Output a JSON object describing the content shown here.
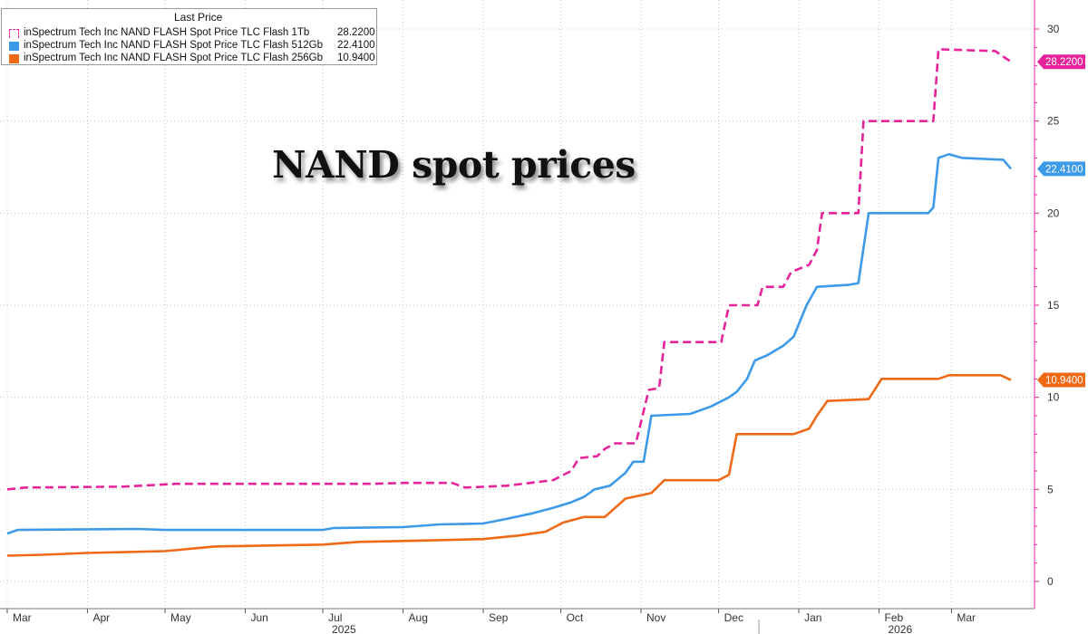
{
  "chart_data": {
    "type": "line",
    "title": "NAND spot prices",
    "legend_header": "Last Price",
    "legend_position": "top-left",
    "grid": true,
    "ylim": [
      0,
      30
    ],
    "yticks": [
      "0",
      "5",
      "10",
      "15",
      "20",
      "25",
      "30"
    ],
    "x_start": "2025-03-01",
    "x_end": "2026-03-31",
    "xticks": [
      {
        "label": "Mar",
        "date": "2025-03-01"
      },
      {
        "label": "Apr",
        "date": "2025-04-01"
      },
      {
        "label": "May",
        "date": "2025-05-01"
      },
      {
        "label": "Jun",
        "date": "2025-06-01"
      },
      {
        "label": "Jul",
        "date": "2025-07-01"
      },
      {
        "label": "Aug",
        "date": "2025-08-01"
      },
      {
        "label": "Sep",
        "date": "2025-09-01"
      },
      {
        "label": "Oct",
        "date": "2025-10-01"
      },
      {
        "label": "Nov",
        "date": "2025-11-01"
      },
      {
        "label": "Dec",
        "date": "2025-12-01"
      },
      {
        "label": "Jan",
        "date": "2026-01-01"
      },
      {
        "label": "Feb",
        "date": "2026-02-01"
      },
      {
        "label": "Mar",
        "date": "2026-03-01"
      }
    ],
    "year_labels": [
      {
        "label": "2025",
        "date": "2025-07-15"
      },
      {
        "label": "2026",
        "date": "2026-02-15"
      }
    ],
    "series": [
      {
        "name": "inSpectrum Tech Inc NAND FLASH Spot Price TLC Flash 1Tb",
        "last_value": "28.2200",
        "color": "#e6239a",
        "style": "dashed",
        "points": [
          [
            "2025-03-01",
            5.0
          ],
          [
            "2025-03-08",
            5.1
          ],
          [
            "2025-04-15",
            5.15
          ],
          [
            "2025-05-05",
            5.3
          ],
          [
            "2025-07-01",
            5.3
          ],
          [
            "2025-07-20",
            5.3
          ],
          [
            "2025-08-01",
            5.35
          ],
          [
            "2025-08-20",
            5.35
          ],
          [
            "2025-08-25",
            5.1
          ],
          [
            "2025-09-10",
            5.2
          ],
          [
            "2025-09-22",
            5.4
          ],
          [
            "2025-09-28",
            5.5
          ],
          [
            "2025-10-05",
            6.0
          ],
          [
            "2025-10-08",
            6.7
          ],
          [
            "2025-10-15",
            6.8
          ],
          [
            "2025-10-18",
            7.2
          ],
          [
            "2025-10-22",
            7.5
          ],
          [
            "2025-10-30",
            7.5
          ],
          [
            "2025-11-04",
            10.4
          ],
          [
            "2025-11-08",
            10.5
          ],
          [
            "2025-11-10",
            13.0
          ],
          [
            "2025-11-24",
            13.0
          ],
          [
            "2025-12-02",
            13.0
          ],
          [
            "2025-12-05",
            15.0
          ],
          [
            "2025-12-16",
            15.0
          ],
          [
            "2025-12-18",
            16.0
          ],
          [
            "2025-12-26",
            16.0
          ],
          [
            "2025-12-29",
            16.8
          ],
          [
            "2026-01-05",
            17.2
          ],
          [
            "2026-01-08",
            18.0
          ],
          [
            "2026-01-10",
            20.0
          ],
          [
            "2026-01-24",
            20.0
          ],
          [
            "2026-01-26",
            25.0
          ],
          [
            "2026-02-22",
            25.0
          ],
          [
            "2026-02-24",
            28.9
          ],
          [
            "2026-03-18",
            28.8
          ],
          [
            "2026-03-21",
            28.5
          ],
          [
            "2026-03-24",
            28.22
          ]
        ]
      },
      {
        "name": "inSpectrum Tech Inc NAND FLASH Spot Price TLC Flash 512Gb",
        "last_value": "22.4100",
        "color": "#3d9ae8",
        "style": "solid",
        "points": [
          [
            "2025-03-01",
            2.6
          ],
          [
            "2025-03-05",
            2.8
          ],
          [
            "2025-04-20",
            2.85
          ],
          [
            "2025-05-01",
            2.8
          ],
          [
            "2025-07-01",
            2.8
          ],
          [
            "2025-07-05",
            2.9
          ],
          [
            "2025-08-01",
            2.95
          ],
          [
            "2025-08-15",
            3.1
          ],
          [
            "2025-09-01",
            3.15
          ],
          [
            "2025-09-10",
            3.4
          ],
          [
            "2025-09-20",
            3.7
          ],
          [
            "2025-09-28",
            4.0
          ],
          [
            "2025-10-05",
            4.3
          ],
          [
            "2025-10-10",
            4.6
          ],
          [
            "2025-10-14",
            5.0
          ],
          [
            "2025-10-20",
            5.2
          ],
          [
            "2025-10-26",
            5.9
          ],
          [
            "2025-10-29",
            6.5
          ],
          [
            "2025-11-02",
            6.5
          ],
          [
            "2025-11-05",
            9.0
          ],
          [
            "2025-11-20",
            9.1
          ],
          [
            "2025-11-28",
            9.5
          ],
          [
            "2025-12-05",
            10.0
          ],
          [
            "2025-12-08",
            10.3
          ],
          [
            "2025-12-12",
            11.0
          ],
          [
            "2025-12-15",
            12.0
          ],
          [
            "2025-12-20",
            12.3
          ],
          [
            "2025-12-26",
            12.8
          ],
          [
            "2025-12-30",
            13.3
          ],
          [
            "2026-01-04",
            15.0
          ],
          [
            "2026-01-08",
            16.0
          ],
          [
            "2026-01-20",
            16.1
          ],
          [
            "2026-01-24",
            16.2
          ],
          [
            "2026-01-28",
            20.0
          ],
          [
            "2026-02-20",
            20.0
          ],
          [
            "2026-02-22",
            20.3
          ],
          [
            "2026-02-24",
            23.0
          ],
          [
            "2026-02-28",
            23.2
          ],
          [
            "2026-03-05",
            23.0
          ],
          [
            "2026-03-21",
            22.9
          ],
          [
            "2026-03-24",
            22.41
          ]
        ]
      },
      {
        "name": "inSpectrum Tech Inc NAND FLASH Spot Price TLC Flash 256Gb",
        "last_value": "10.9400",
        "color": "#ef6a16",
        "style": "solid",
        "points": [
          [
            "2025-03-01",
            1.4
          ],
          [
            "2025-03-15",
            1.45
          ],
          [
            "2025-04-01",
            1.55
          ],
          [
            "2025-05-01",
            1.65
          ],
          [
            "2025-05-20",
            1.9
          ],
          [
            "2025-07-01",
            2.0
          ],
          [
            "2025-07-15",
            2.15
          ],
          [
            "2025-08-01",
            2.2
          ],
          [
            "2025-09-01",
            2.3
          ],
          [
            "2025-09-15",
            2.5
          ],
          [
            "2025-09-25",
            2.7
          ],
          [
            "2025-10-02",
            3.2
          ],
          [
            "2025-10-10",
            3.5
          ],
          [
            "2025-10-18",
            3.5
          ],
          [
            "2025-10-26",
            4.5
          ],
          [
            "2025-11-05",
            4.8
          ],
          [
            "2025-11-10",
            5.5
          ],
          [
            "2025-12-01",
            5.5
          ],
          [
            "2025-12-05",
            5.8
          ],
          [
            "2025-12-08",
            8.0
          ],
          [
            "2025-12-30",
            8.0
          ],
          [
            "2026-01-05",
            8.3
          ],
          [
            "2026-01-08",
            9.0
          ],
          [
            "2026-01-12",
            9.8
          ],
          [
            "2026-01-28",
            9.9
          ],
          [
            "2026-02-02",
            11.0
          ],
          [
            "2026-02-24",
            11.0
          ],
          [
            "2026-02-28",
            11.2
          ],
          [
            "2026-03-20",
            11.2
          ],
          [
            "2026-03-24",
            10.94
          ]
        ]
      }
    ]
  }
}
